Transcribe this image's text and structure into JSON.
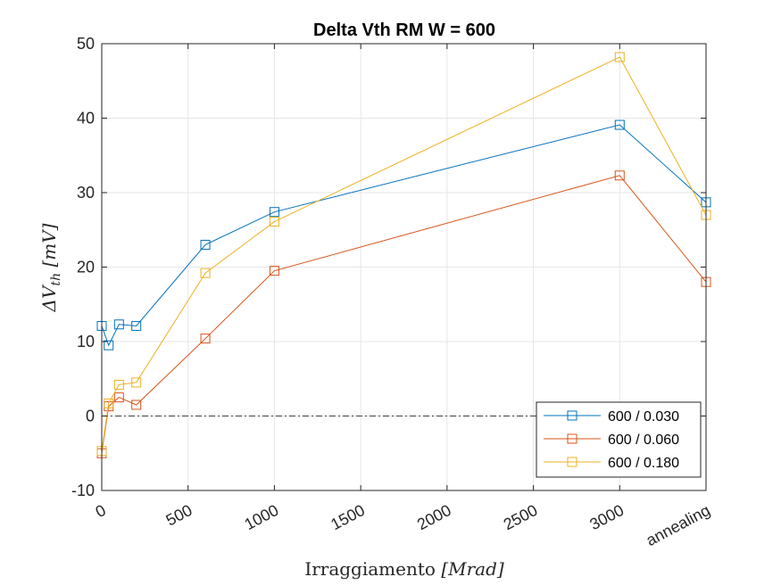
{
  "chart_data": {
    "type": "line",
    "title": "Delta Vth RM W = 600",
    "xlabel_main": "Irraggiamento ",
    "xlabel_unit": "[Mrad]",
    "ylabel_main": "ΔV",
    "ylabel_sub": "th",
    "ylabel_unit": " [mV]",
    "xlim": [
      0,
      3500
    ],
    "ylim": [
      -10,
      50
    ],
    "x_ticks": [
      {
        "value": 0,
        "label": "0"
      },
      {
        "value": 500,
        "label": "500"
      },
      {
        "value": 1000,
        "label": "1000"
      },
      {
        "value": 1500,
        "label": "1500"
      },
      {
        "value": 2000,
        "label": "2000"
      },
      {
        "value": 2500,
        "label": "2500"
      },
      {
        "value": 3000,
        "label": "3000"
      },
      {
        "value": 3500,
        "label": "annealing"
      }
    ],
    "y_ticks": [
      -10,
      0,
      10,
      20,
      30,
      40,
      50
    ],
    "x": [
      0,
      40,
      100,
      200,
      600,
      1000,
      3000,
      3500
    ],
    "series": [
      {
        "name": "600 / 0.030",
        "color": "#0072BD",
        "values": [
          12.1,
          9.5,
          12.3,
          12.1,
          23.0,
          27.4,
          39.1,
          28.7
        ]
      },
      {
        "name": "600 / 0.060",
        "color": "#D95319",
        "values": [
          -5.0,
          1.3,
          2.5,
          1.5,
          10.4,
          19.5,
          32.3,
          18.0
        ]
      },
      {
        "name": "600 / 0.180",
        "color": "#EDB120",
        "values": [
          -4.7,
          1.7,
          4.2,
          4.5,
          19.2,
          26.1,
          48.2,
          27.0
        ]
      }
    ],
    "reference_line": {
      "y": 0,
      "style": "dash-dot"
    },
    "grid": true,
    "legend_position": "bottom-right"
  }
}
